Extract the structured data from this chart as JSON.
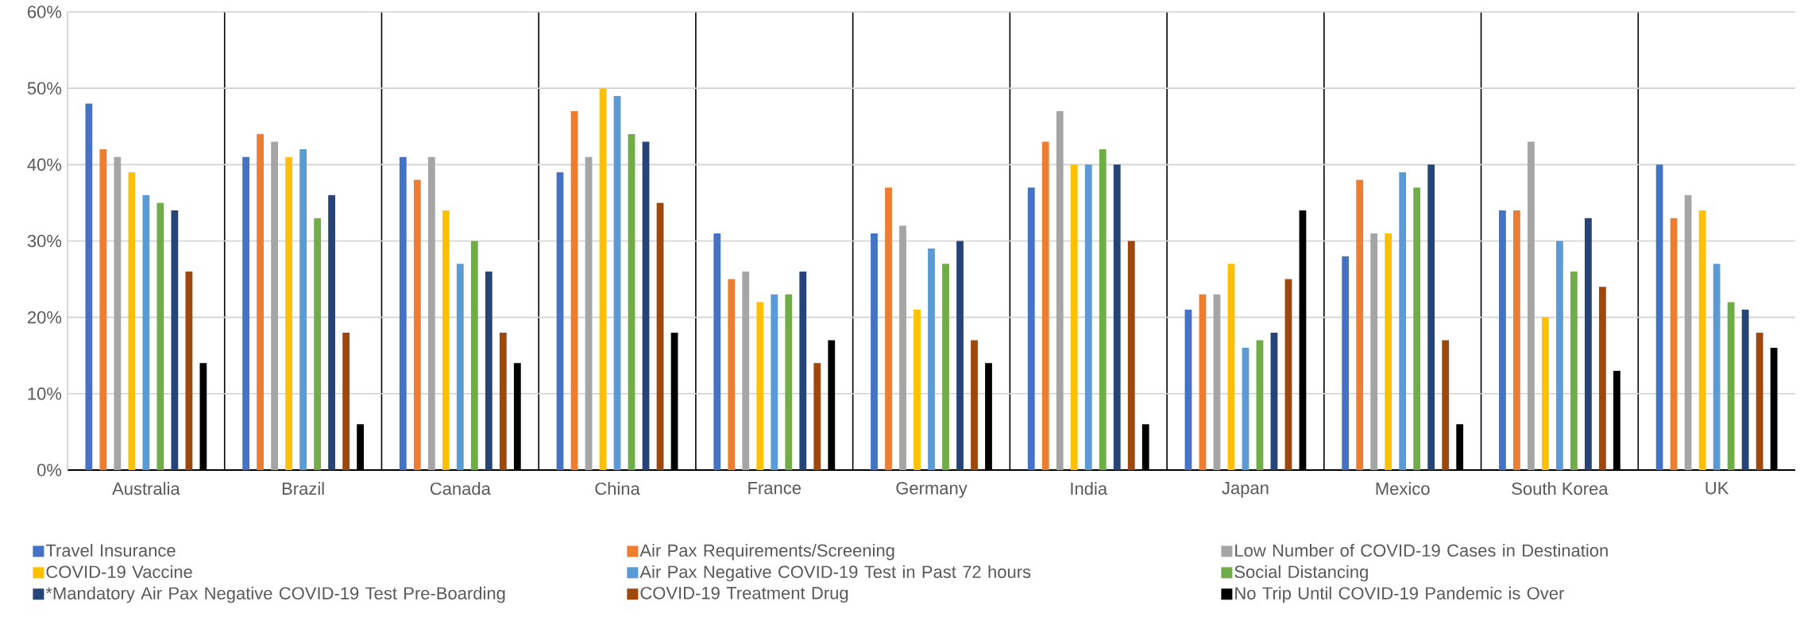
{
  "chart_data": {
    "type": "bar",
    "categories": [
      "Australia",
      "Brazil",
      "Canada",
      "China",
      "France",
      "Germany",
      "India",
      "Japan",
      "Mexico",
      "South Korea",
      "UK"
    ],
    "series": [
      {
        "name": "Travel Insurance",
        "color": "#4472c4",
        "values": [
          48,
          41,
          41,
          39,
          31,
          31,
          37,
          21,
          28,
          34,
          40
        ]
      },
      {
        "name": "Air Pax Requirements/Screening",
        "color": "#ed7d31",
        "values": [
          42,
          44,
          38,
          47,
          25,
          37,
          43,
          23,
          38,
          34,
          33
        ]
      },
      {
        "name": "Low Number of COVID-19 Cases in Destination",
        "color": "#a5a5a5",
        "values": [
          41,
          43,
          41,
          41,
          26,
          32,
          47,
          23,
          31,
          43,
          36
        ]
      },
      {
        "name": "COVID-19 Vaccine",
        "color": "#ffc000",
        "values": [
          39,
          41,
          34,
          50,
          22,
          21,
          40,
          27,
          31,
          20,
          34
        ]
      },
      {
        "name": "Air Pax Negative COVID-19 Test in Past 72 hours",
        "color": "#5b9bd5",
        "values": [
          36,
          42,
          27,
          49,
          23,
          29,
          40,
          16,
          39,
          30,
          27
        ]
      },
      {
        "name": "Social Distancing",
        "color": "#70ad47",
        "values": [
          35,
          33,
          30,
          44,
          23,
          27,
          42,
          17,
          37,
          26,
          22
        ]
      },
      {
        "name": "*Mandatory Air Pax Negative COVID-19 Test Pre-Boarding",
        "color": "#264478",
        "values": [
          34,
          36,
          26,
          43,
          26,
          30,
          40,
          18,
          40,
          33,
          21
        ]
      },
      {
        "name": "COVID-19 Treatment Drug",
        "color": "#9e480e",
        "values": [
          26,
          18,
          18,
          35,
          14,
          17,
          30,
          25,
          17,
          24,
          18
        ]
      },
      {
        "name": "No Trip Until COVID-19 Pandemic is Over",
        "color": "#000000",
        "values": [
          14,
          6,
          14,
          18,
          17,
          14,
          6,
          34,
          6,
          13,
          16
        ]
      }
    ],
    "ylim": [
      0,
      60
    ],
    "yticks": [
      {
        "value": 0,
        "label": "0%"
      },
      {
        "value": 10,
        "label": "10%"
      },
      {
        "value": 20,
        "label": "20%"
      },
      {
        "value": 30,
        "label": "30%"
      },
      {
        "value": 40,
        "label": "40%"
      },
      {
        "value": 50,
        "label": "50%"
      },
      {
        "value": 60,
        "label": "60%"
      }
    ],
    "grid": true,
    "legend": "bottom"
  }
}
